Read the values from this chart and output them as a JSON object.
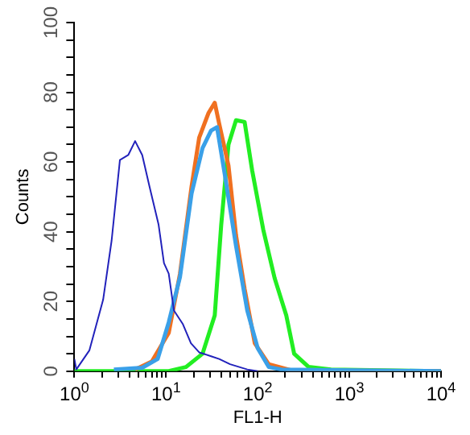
{
  "chart_data": {
    "type": "line",
    "xlabel": "FL1-H",
    "ylabel": "Counts",
    "log": "x",
    "xlim": [
      1,
      10000
    ],
    "ylim": [
      0,
      100
    ],
    "xticks": [
      {
        "value": 1,
        "label": "10$^{0}$"
      },
      {
        "value": 2,
        "label": null
      },
      {
        "value": 3,
        "label": null
      },
      {
        "value": 4,
        "label": null
      },
      {
        "value": 5,
        "label": null
      },
      {
        "value": 6,
        "label": null
      },
      {
        "value": 7,
        "label": null
      },
      {
        "value": 8,
        "label": null
      },
      {
        "value": 9,
        "label": null
      },
      {
        "value": 10,
        "label": "10$^{1}$"
      },
      {
        "value": 20,
        "label": null
      },
      {
        "value": 30,
        "label": null
      },
      {
        "value": 40,
        "label": null
      },
      {
        "value": 50,
        "label": null
      },
      {
        "value": 60,
        "label": null
      },
      {
        "value": 70,
        "label": null
      },
      {
        "value": 80,
        "label": null
      },
      {
        "value": 90,
        "label": null
      },
      {
        "value": 100,
        "label": "10$^{2}$"
      },
      {
        "value": 200,
        "label": null
      },
      {
        "value": 300,
        "label": null
      },
      {
        "value": 400,
        "label": null
      },
      {
        "value": 500,
        "label": null
      },
      {
        "value": 600,
        "label": null
      },
      {
        "value": 700,
        "label": null
      },
      {
        "value": 800,
        "label": null
      },
      {
        "value": 900,
        "label": null
      },
      {
        "value": 1000,
        "label": "10$^{3}$"
      },
      {
        "value": 2000,
        "label": null
      },
      {
        "value": 3000,
        "label": null
      },
      {
        "value": 4000,
        "label": null
      },
      {
        "value": 5000,
        "label": null
      },
      {
        "value": 6000,
        "label": null
      },
      {
        "value": 7000,
        "label": null
      },
      {
        "value": 8000,
        "label": null
      },
      {
        "value": 9000,
        "label": null
      },
      {
        "value": 10000,
        "label": "10$^{4}$"
      }
    ],
    "yticks": [
      0,
      {
        "value": 5,
        "label": null
      },
      {
        "value": 10,
        "label": null
      },
      {
        "value": 15,
        "label": null
      },
      20,
      {
        "value": 25,
        "label": null
      },
      {
        "value": 30,
        "label": null
      },
      {
        "value": 35,
        "label": null
      },
      40,
      {
        "value": 45,
        "label": null
      },
      {
        "value": 50,
        "label": null
      },
      {
        "value": 55,
        "label": null
      },
      60,
      {
        "value": 65,
        "label": null
      },
      {
        "value": 70,
        "label": null
      },
      {
        "value": 75,
        "label": null
      },
      80,
      {
        "value": 85,
        "label": null
      },
      {
        "value": 90,
        "label": null
      },
      {
        "value": 95,
        "label": null
      },
      100
    ],
    "grid": false,
    "legend": false,
    "marker": "none",
    "line_style": "solid",
    "series": [
      {
        "color": "#2222bb",
        "x": [
          1,
          1.05,
          1.46,
          2.06,
          2.55,
          3.14,
          3.87,
          4.6,
          5.5,
          6.6,
          8.3,
          9.5,
          10.7,
          12.2,
          15.2,
          18.7,
          23,
          31,
          38,
          50,
          77,
          100
        ],
        "values": [
          3.5,
          0.5,
          6,
          20.5,
          37.5,
          60.6,
          62,
          66,
          62,
          53,
          42,
          31,
          28,
          17.4,
          13.6,
          8,
          5.4,
          4.3,
          3.5,
          2,
          0.5,
          0
        ]
      },
      {
        "color": "#3aa0e8",
        "x": [
          2.7,
          5.5,
          8.1,
          10.7,
          14.2,
          19,
          25,
          31,
          36,
          44,
          58,
          77,
          100,
          132,
          180,
          10000
        ],
        "values": [
          0.5,
          1,
          3.5,
          14,
          27,
          51,
          64,
          69,
          70,
          56,
          36,
          17.4,
          6.6,
          1.2,
          0.5,
          0
        ]
      },
      {
        "color": "#f07020",
        "x": [
          4.6,
          7,
          10.7,
          14.2,
          19,
          23,
          29,
          34,
          38,
          48,
          58,
          72,
          93,
          132,
          236,
          10000
        ],
        "values": [
          0.5,
          2.8,
          11,
          28,
          53,
          67,
          74,
          77,
          71,
          59,
          39,
          23.6,
          8,
          2,
          0.2,
          0
        ]
      },
      {
        "color": "#22ee22",
        "x": [
          1,
          10.7,
          16.5,
          25,
          34,
          40,
          48,
          58,
          72,
          87,
          115,
          153,
          205,
          250,
          360,
          630,
          10000
        ],
        "values": [
          0,
          0,
          1.2,
          5,
          16,
          42,
          65,
          72,
          71.5,
          57.6,
          40.6,
          26.7,
          16,
          5,
          1.2,
          0.5,
          0
        ]
      }
    ]
  }
}
